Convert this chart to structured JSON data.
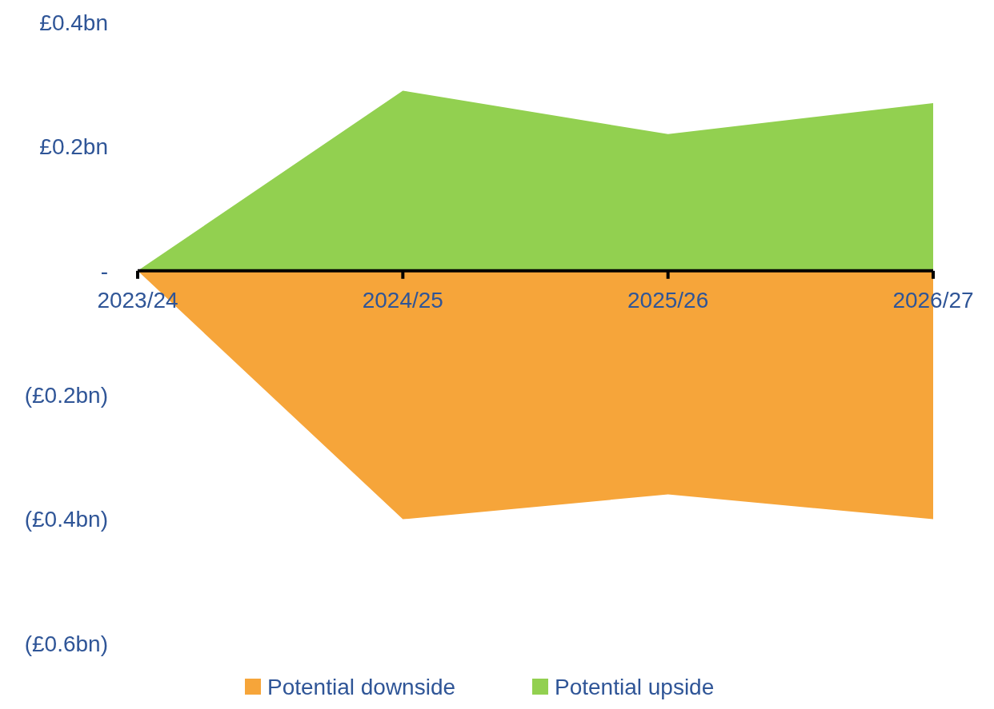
{
  "chart_data": {
    "type": "area",
    "categories": [
      "2023/24",
      "2024/25",
      "2025/26",
      "2026/27"
    ],
    "series": [
      {
        "name": "Potential downside",
        "color": "#f6a53a",
        "values": [
          0,
          -0.4,
          -0.36,
          -0.4
        ]
      },
      {
        "name": "Potential upside",
        "color": "#92d050",
        "values": [
          0,
          0.29,
          0.22,
          0.27
        ]
      }
    ],
    "ylim": [
      -0.6,
      0.4
    ],
    "yticks": [
      {
        "value": 0.4,
        "label": "£0.4bn"
      },
      {
        "value": 0.2,
        "label": "£0.2bn"
      },
      {
        "value": 0,
        "label": "-"
      },
      {
        "value": -0.2,
        "label": "(£0.2bn)"
      },
      {
        "value": -0.4,
        "label": "(£0.4bn)"
      },
      {
        "value": -0.6,
        "label": "(£0.6bn)"
      }
    ],
    "grid": false,
    "legend": "bottom"
  }
}
